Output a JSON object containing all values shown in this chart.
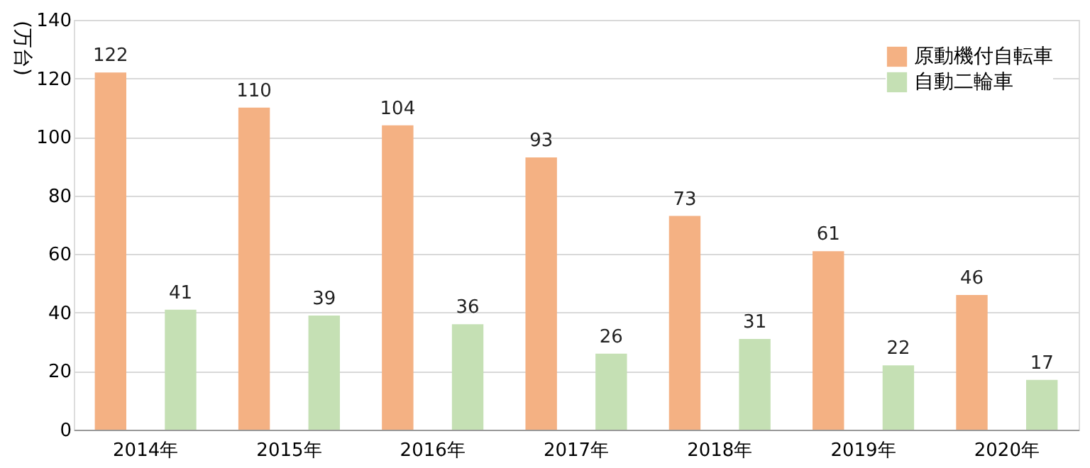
{
  "chart_data": {
    "type": "bar",
    "ylabel": "(万台)",
    "categories": [
      "2014年",
      "2015年",
      "2016年",
      "2017年",
      "2018年",
      "2019年",
      "2020年"
    ],
    "series": [
      {
        "name": "原動機付自転車",
        "color": "#f4b183",
        "values": [
          122,
          110,
          104,
          93,
          73,
          61,
          46
        ]
      },
      {
        "name": "自動二輪車",
        "color": "#c5e0b4",
        "values": [
          41,
          39,
          36,
          26,
          31,
          22,
          17
        ]
      }
    ],
    "ylim": [
      0,
      140
    ],
    "yticks": [
      0,
      20,
      40,
      60,
      80,
      100,
      120,
      140
    ],
    "grid": "y",
    "legend": "top right",
    "data_labels": true
  }
}
